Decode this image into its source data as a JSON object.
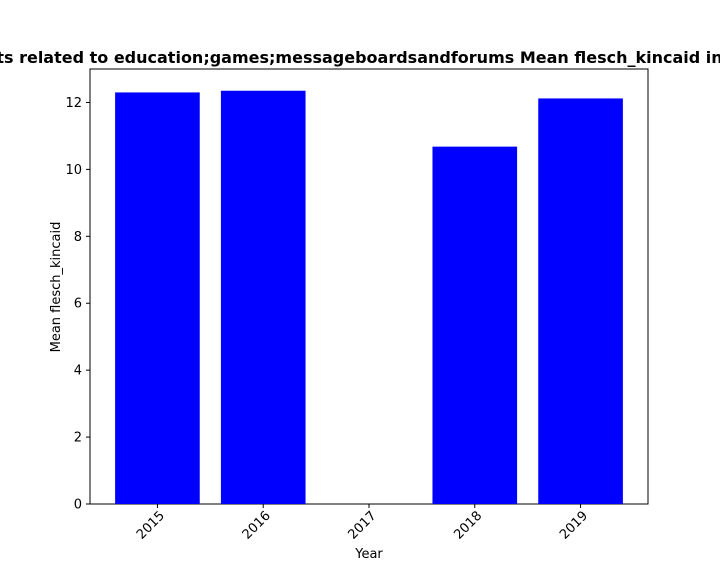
{
  "chart_data": {
    "type": "bar",
    "title": "ts related to education;games;messageboardsandforums Mean flesch_kincaid in p",
    "xlabel": "Year",
    "ylabel": "Mean flesch_kincaid",
    "categories": [
      "2015",
      "2016",
      "2017",
      "2018",
      "2019"
    ],
    "values": [
      12.3,
      12.35,
      0,
      10.68,
      12.12
    ],
    "ylim": [
      0,
      13.0
    ],
    "yticks": [
      0,
      2,
      4,
      6,
      8,
      10,
      12
    ],
    "bar_color": "#0000ff",
    "grid": false,
    "legend": "none",
    "xtick_rotation": "45"
  }
}
